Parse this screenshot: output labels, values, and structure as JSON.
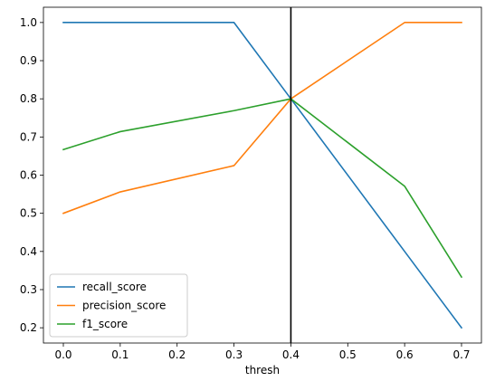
{
  "chart_data": {
    "type": "line",
    "title": "",
    "xlabel": "thresh",
    "ylabel": "",
    "x": [
      0.0,
      0.1,
      0.3,
      0.4,
      0.6,
      0.7
    ],
    "xlim": [
      -0.035,
      0.735
    ],
    "ylim": [
      0.16,
      1.04
    ],
    "xticks": [
      0.0,
      0.1,
      0.2,
      0.3,
      0.4,
      0.5,
      0.6,
      0.7
    ],
    "yticks": [
      0.2,
      0.3,
      0.4,
      0.5,
      0.6,
      0.7,
      0.8,
      0.9,
      1.0
    ],
    "xtick_labels": [
      "0.0",
      "0.1",
      "0.2",
      "0.3",
      "0.4",
      "0.5",
      "0.6",
      "0.7"
    ],
    "ytick_labels": [
      "0.2",
      "0.3",
      "0.4",
      "0.5",
      "0.6",
      "0.7",
      "0.8",
      "0.9",
      "1.0"
    ],
    "series": [
      {
        "name": "recall_score",
        "color": "#1f77b4",
        "values": [
          1.0,
          1.0,
          1.0,
          0.8,
          0.4,
          0.2
        ]
      },
      {
        "name": "precision_score",
        "color": "#ff7f0e",
        "values": [
          0.5,
          0.556,
          0.625,
          0.8,
          1.0,
          1.0
        ]
      },
      {
        "name": "f1_score",
        "color": "#2ca02c",
        "values": [
          0.667,
          0.714,
          0.769,
          0.8,
          0.571,
          0.333
        ]
      }
    ],
    "vline": {
      "x": 0.4,
      "color": "#000000"
    },
    "grid": false,
    "legend_position": "lower-left"
  }
}
